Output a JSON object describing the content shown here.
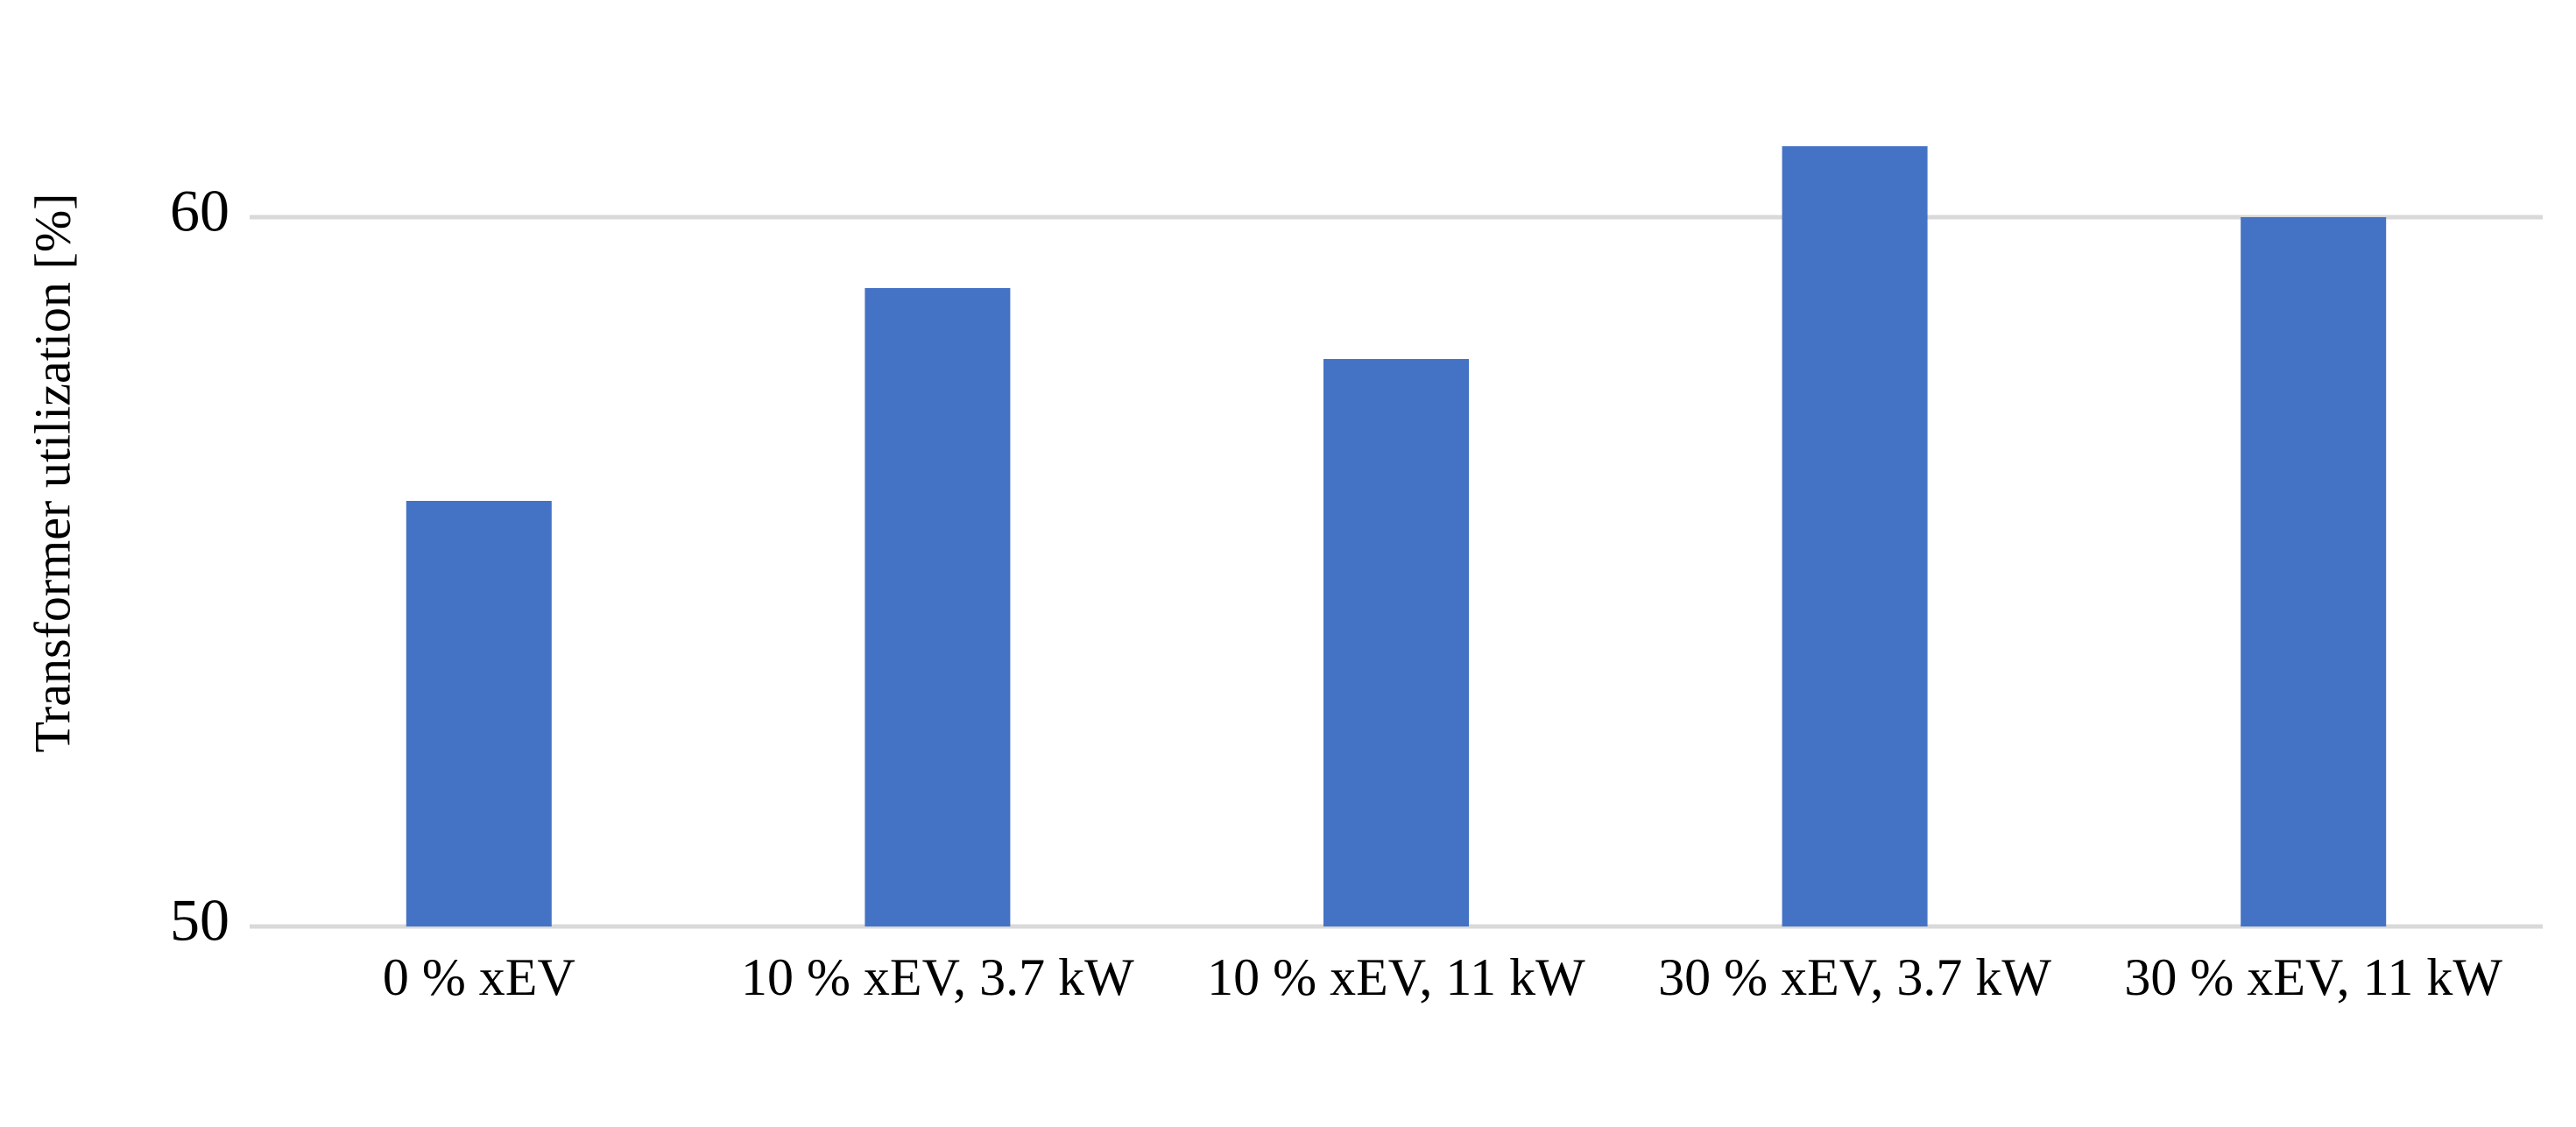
{
  "chart_data": {
    "type": "bar",
    "y_label": "Transformer utilization [%]",
    "categories": [
      "0 % xEV",
      "10 % xEV, 3.7 kW",
      "10 % xEV, 11 kW",
      "30 % xEV, 3.7 kW",
      "30 % xEV, 11 kW"
    ],
    "values": [
      56,
      59,
      58,
      61,
      60
    ],
    "color": "#4472c4",
    "ylim": [
      50,
      63
    ],
    "yticks": [
      50,
      60
    ],
    "grid": true
  }
}
